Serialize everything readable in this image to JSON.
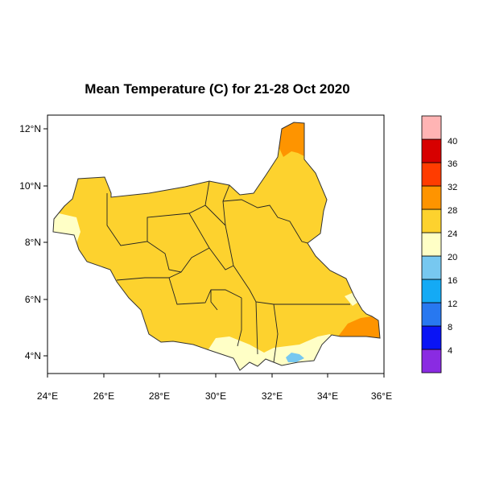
{
  "map": {
    "title": "Mean Temperature (C) for 21-28 Oct 2020",
    "x_ticks": [
      "24°E",
      "26°E",
      "28°E",
      "30°E",
      "32°E",
      "34°E",
      "36°E"
    ],
    "y_ticks": [
      "4°N",
      "6°N",
      "8°N",
      "10°N",
      "12°N"
    ],
    "region_colors": {
      "warm_24_28": "#fdd22e",
      "mild_20_24": "#ffffc6",
      "hot_28_32": "#fe9400",
      "cool_16_20": "#77c8f0"
    }
  },
  "colorbar": {
    "labels": [
      "4",
      "8",
      "12",
      "16",
      "20",
      "24",
      "28",
      "32",
      "36",
      "40"
    ],
    "colors": [
      "#8a2be2",
      "#0a14f5",
      "#2878f0",
      "#14aaf5",
      "#77c8f0",
      "#ffffc6",
      "#fdd22e",
      "#fe9400",
      "#ff3c00",
      "#d70000",
      "#ffb4b4"
    ]
  }
}
